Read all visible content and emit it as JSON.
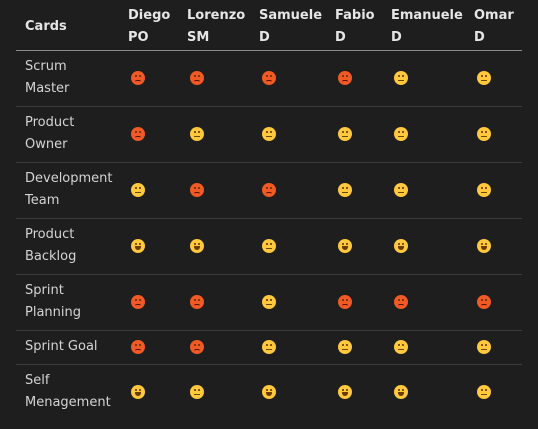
{
  "table": {
    "header_label": "Cards",
    "columns": [
      {
        "line1": "Diego",
        "line2": "PO"
      },
      {
        "line1": "Lorenzo",
        "line2": "SM"
      },
      {
        "line1": "Samuele",
        "line2": "D"
      },
      {
        "line1": "Fabio",
        "line2": "D"
      },
      {
        "line1": "Emanuele",
        "line2": "D"
      },
      {
        "line1": "Omar",
        "line2": "D"
      }
    ],
    "rows": [
      {
        "line1": "Scrum",
        "line2": "Master",
        "faces": [
          "angry-face-icon",
          "angry-face-icon",
          "angry-face-icon",
          "angry-face-icon",
          "neutral-face-icon",
          "neutral-face-icon"
        ]
      },
      {
        "line1": "Product",
        "line2": "Owner",
        "faces": [
          "angry-face-icon",
          "neutral-face-icon",
          "neutral-face-icon",
          "neutral-face-icon",
          "neutral-face-icon",
          "neutral-face-icon"
        ]
      },
      {
        "line1": "Development",
        "line2": "Team",
        "faces": [
          "neutral-face-icon",
          "angry-face-icon",
          "angry-face-icon",
          "neutral-face-icon",
          "neutral-face-icon",
          "neutral-face-icon"
        ]
      },
      {
        "line1": "Product",
        "line2": "Backlog",
        "faces": [
          "happy-face-icon",
          "happy-face-icon",
          "neutral-face-icon",
          "happy-face-icon",
          "happy-face-icon",
          "happy-face-icon"
        ]
      },
      {
        "line1": "Sprint",
        "line2": "Planning",
        "faces": [
          "angry-face-icon",
          "angry-face-icon",
          "neutral-face-icon",
          "angry-face-icon",
          "angry-face-icon",
          "angry-face-icon"
        ]
      },
      {
        "line1": "Sprint Goal",
        "line2": "",
        "faces": [
          "angry-face-icon",
          "angry-face-icon",
          "neutral-face-icon",
          "neutral-face-icon",
          "neutral-face-icon",
          "neutral-face-icon"
        ]
      },
      {
        "line1": "Self",
        "line2": "Menagement",
        "faces": [
          "happy-face-icon",
          "neutral-face-icon",
          "happy-face-icon",
          "happy-face-icon",
          "happy-face-icon",
          "neutral-face-icon"
        ]
      }
    ]
  },
  "colors": {
    "background": "#1e1e1e",
    "angry": "#f15a24",
    "neutral": "#ffc83d",
    "happy": "#ffc83d"
  }
}
